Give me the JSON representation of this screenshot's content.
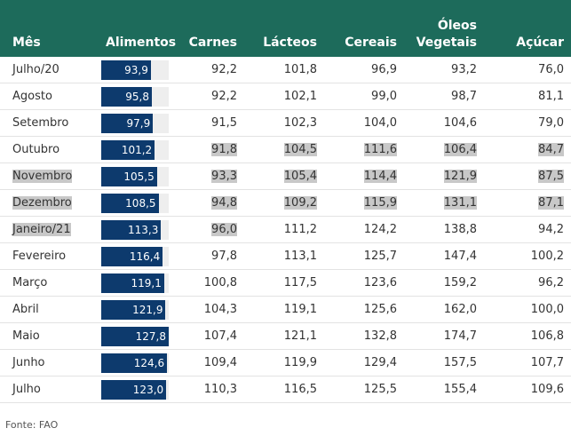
{
  "header": [
    "Mês",
    "Alimentos",
    "Carnes",
    "Lácteos",
    "Cereais",
    "Óleos Vegetais",
    "Açúcar"
  ],
  "rows": [
    [
      "Julho/20",
      {
        "value": 93.9,
        "label": "93,9"
      },
      "92,2",
      "101,8",
      "96,9",
      "93,2",
      "76,0"
    ],
    [
      "Agosto",
      {
        "value": 95.8,
        "label": "95,8"
      },
      "92,2",
      "102,1",
      "99,0",
      "98,7",
      "81,1"
    ],
    [
      "Setembro",
      {
        "value": 97.9,
        "label": "97,9"
      },
      "91,5",
      "102,3",
      "104,0",
      "104,6",
      "79,0"
    ],
    [
      "Outubro",
      {
        "value": 101.2,
        "label": "101,2"
      },
      "91,8",
      "104,5",
      "111,6",
      "106,4",
      "84,7"
    ],
    [
      "Novembro",
      {
        "value": 105.5,
        "label": "105,5"
      },
      "93,3",
      "105,4",
      "114,4",
      "121,9",
      "87,5"
    ],
    [
      "Dezembro",
      {
        "value": 108.5,
        "label": "108,5"
      },
      "94,8",
      "109,2",
      "115,9",
      "131,1",
      "87,1"
    ],
    [
      "Janeiro/21",
      {
        "value": 113.3,
        "label": "113,3"
      },
      "96,0",
      "111,2",
      "124,2",
      "138,8",
      "94,2"
    ],
    [
      "Fevereiro",
      {
        "value": 116.4,
        "label": "116,4"
      },
      "97,8",
      "113,1",
      "125,7",
      "147,4",
      "100,2"
    ],
    [
      "Março",
      {
        "value": 119.1,
        "label": "119,1"
      },
      "100,8",
      "117,5",
      "123,6",
      "159,2",
      "96,2"
    ],
    [
      "Abril",
      {
        "value": 121.9,
        "label": "121,9"
      },
      "104,3",
      "119,1",
      "125,6",
      "162,0",
      "100,0"
    ],
    [
      "Maio",
      {
        "value": 127.8,
        "label": "127,8"
      },
      "107,4",
      "121,1",
      "132,8",
      "174,7",
      "106,8"
    ],
    [
      "Junho",
      {
        "value": 124.6,
        "label": "124,6"
      },
      "109,4",
      "119,9",
      "129,4",
      "157,5",
      "107,7"
    ],
    [
      "Julho",
      {
        "value": 123.0,
        "label": "123,0"
      },
      "110,3",
      "116,5",
      "125,5",
      "155,4",
      "109,6"
    ]
  ],
  "footer": "Fonte: FAO"
}
